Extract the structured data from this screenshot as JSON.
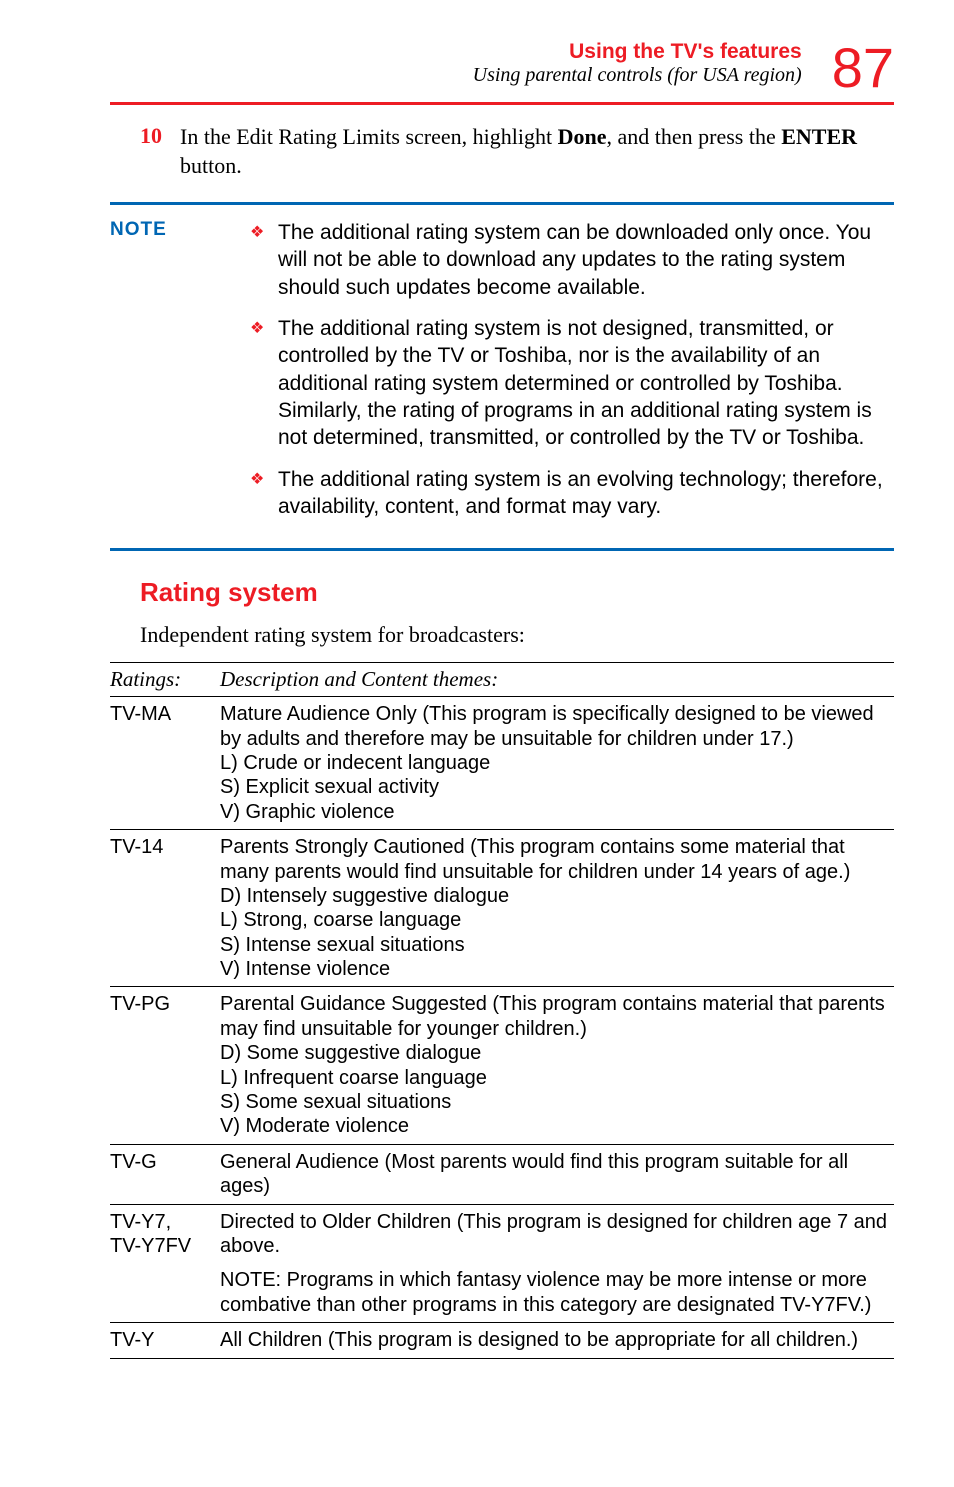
{
  "header": {
    "title": "Using the TV's features",
    "subtitle": "Using parental controls (for USA region)",
    "page_number": "87",
    "title_color": "#ed1c24",
    "subtitle_color": "#000000",
    "rule_color": "#ed1c24"
  },
  "step": {
    "number": "10",
    "text_pre": "In the Edit Rating Limits screen, highlight ",
    "bold1": "Done",
    "mid": ", and then press the ",
    "bold2": "ENTER",
    "text_post": " button."
  },
  "note": {
    "label": "NOTE",
    "label_color": "#0066b3",
    "rule_color": "#0066b3",
    "bullet_color": "#ed1c24",
    "items": [
      "The additional rating system can be downloaded only once. You will not be able to download any updates to the rating system should such updates become available.",
      "The additional rating system is not designed, transmitted, or controlled by the TV or Toshiba, nor is the availability of an additional rating system determined or controlled by Toshiba. Similarly, the rating of programs in an additional rating system is not determined, transmitted, or controlled by the TV or Toshiba.",
      "The additional rating system is an evolving technology; therefore, availability, content, and format may vary."
    ]
  },
  "section": {
    "heading": "Rating system",
    "intro": "Independent rating system for broadcasters:"
  },
  "table": {
    "headers": {
      "col1": "Ratings:",
      "col2": "Description and Content themes:"
    },
    "rows": [
      {
        "rating": "TV-MA",
        "desc": "Mature Audience Only (This program is specifically designed to be viewed by adults and therefore may be unsuitable for children under 17.)\nL) Crude or indecent language\nS) Explicit sexual activity\nV) Graphic violence"
      },
      {
        "rating": "TV-14",
        "desc": "Parents Strongly Cautioned (This program contains some material that many parents would find unsuitable for children under 14 years of age.)\nD) Intensely suggestive dialogue\nL) Strong, coarse language\nS) Intense sexual situations\nV) Intense violence"
      },
      {
        "rating": "TV-PG",
        "desc": "Parental Guidance Suggested (This program contains material that parents may find unsuitable for younger children.)\nD) Some suggestive dialogue\nL) Infrequent coarse language\nS) Some sexual situations\nV) Moderate violence"
      },
      {
        "rating": "TV-G",
        "desc": "General Audience (Most parents would find this program suitable for all ages)"
      },
      {
        "rating": "TV-Y7,\nTV-Y7FV",
        "desc": "Directed to Older Children (This program is designed for children age 7 and above.",
        "extra": "NOTE: Programs in which fantasy violence may be more intense or more combative than other programs in this category are designated TV-Y7FV.)"
      },
      {
        "rating": "TV-Y",
        "desc": "All Children (This program is designed to be appropriate for all children.)"
      }
    ]
  }
}
